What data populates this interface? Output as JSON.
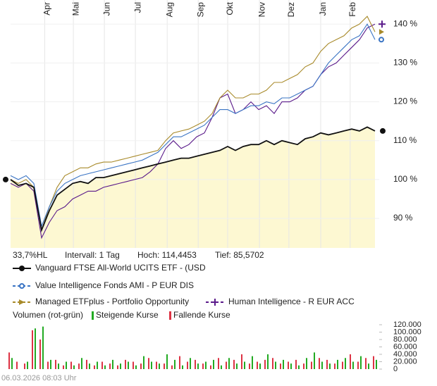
{
  "chart_data": [
    {
      "type": "line",
      "xlim": [
        0,
        47
      ],
      "xticks": [
        {
          "value": 4.4,
          "label": "Apr"
        },
        {
          "value": 8.1,
          "label": "Mai"
        },
        {
          "value": 12.1,
          "label": "Jun"
        },
        {
          "value": 16.1,
          "label": "Jul"
        },
        {
          "value": 20.2,
          "label": "Aug"
        },
        {
          "value": 24.2,
          "label": "Sep"
        },
        {
          "value": 28,
          "label": "Okt"
        },
        {
          "value": 32.1,
          "label": "Nov"
        },
        {
          "value": 35.9,
          "label": "Dez"
        },
        {
          "value": 40,
          "label": "Jan"
        },
        {
          "value": 43.8,
          "label": "Feb"
        }
      ],
      "ylim": [
        82.4,
        146.2
      ],
      "yticks": [
        {
          "value": 90,
          "label": "90 %"
        },
        {
          "value": 100,
          "label": "100 %"
        },
        {
          "value": 110,
          "label": "110 %"
        },
        {
          "value": 120,
          "label": "120 %"
        },
        {
          "value": 130,
          "label": "130 %"
        },
        {
          "value": 140,
          "label": "140 %"
        }
      ],
      "grid": true,
      "annotations": [
        "33,7%HL",
        "Intervall: 1 Tag",
        "Hoch: 114,4453",
        "Tief: 85,5702"
      ],
      "series": [
        {
          "name": "Vanguard FTSE All-World UCITS ETF - (USD",
          "color": "#111111",
          "fill": "#fdf8d2",
          "marker": "dot",
          "values": [
            100,
            98.5,
            99,
            98,
            87,
            92,
            96,
            97.5,
            99,
            99.5,
            99,
            100.5,
            100.5,
            101,
            101.5,
            102,
            102.5,
            103,
            103.5,
            104,
            104.5,
            105,
            105.5,
            105.5,
            106,
            106.5,
            107,
            107.5,
            108.5,
            107.5,
            108.5,
            109,
            109,
            110,
            109,
            110,
            109.5,
            109,
            110.5,
            111,
            112,
            111.5,
            112,
            112.5,
            113,
            112.5,
            113.5,
            112.5
          ]
        },
        {
          "name": "Value Intelligence Fonds AMI - P EUR DIS",
          "color": "#3a74c4",
          "marker": "circle",
          "values": [
            101,
            100,
            101,
            99,
            88,
            93,
            97,
            99,
            100,
            101,
            101.5,
            102,
            102.5,
            103,
            103.5,
            104,
            104.5,
            105,
            106,
            107,
            109,
            111,
            111,
            112,
            113,
            114,
            116,
            118,
            118,
            117,
            118,
            119,
            119,
            120,
            119.5,
            121,
            121,
            122,
            123,
            124,
            127,
            130,
            132,
            134,
            136,
            137,
            140,
            136
          ]
        },
        {
          "name": "Managed ETFplus - Portfolio Opportunity",
          "color": "#a88a2a",
          "marker": "arrow",
          "values": [
            100,
            99,
            100,
            98,
            87,
            93,
            98,
            101,
            102,
            103,
            103,
            104,
            104.5,
            104.5,
            105,
            105.5,
            106,
            106.5,
            107,
            107.5,
            110,
            112,
            112.5,
            113,
            114,
            115,
            117,
            121,
            123,
            121,
            121,
            122,
            122,
            123,
            125,
            125,
            126,
            127,
            129,
            130,
            133,
            135,
            136,
            137,
            139,
            140,
            142,
            138
          ]
        },
        {
          "name": "Human Intelligence - R EUR ACC",
          "color": "#5a1a8a",
          "marker": "plus",
          "values": [
            99,
            98,
            99,
            97,
            85,
            89,
            92,
            93,
            95,
            96,
            97,
            97,
            98,
            98.5,
            99,
            99.5,
            100,
            100.5,
            102,
            104,
            108,
            110,
            108,
            109,
            111,
            112,
            116,
            121,
            122,
            117,
            118,
            120,
            118,
            119,
            117,
            120,
            120,
            121,
            123,
            124,
            127,
            129,
            130,
            132,
            134,
            136,
            139,
            140
          ]
        }
      ]
    },
    {
      "type": "bar",
      "title": "Volumen (rot-grün)",
      "ylim": [
        0,
        120000
      ],
      "yticks": [
        {
          "value": 0,
          "label": "0"
        },
        {
          "value": 20000,
          "label": "20.000"
        },
        {
          "value": 40000,
          "label": "40.000"
        },
        {
          "value": 60000,
          "label": "60.000"
        },
        {
          "value": 80000,
          "label": "80.000"
        },
        {
          "value": 100000,
          "label": "100.000"
        },
        {
          "value": 120000,
          "label": "120.000"
        }
      ],
      "series": [
        {
          "name": "Steigende Kurse",
          "color": "#22aa22",
          "values": [
            30000,
            0,
            20000,
            110000,
            115000,
            25000,
            15000,
            20000,
            10000,
            30000,
            15000,
            20000,
            10000,
            25000,
            15000,
            20000,
            10000,
            35000,
            20000,
            15000,
            40000,
            25000,
            10000,
            30000,
            15000,
            20000,
            25000,
            10000,
            30000,
            15000,
            20000,
            35000,
            15000,
            40000,
            20000,
            25000,
            15000,
            10000,
            30000,
            45000,
            20000,
            15000,
            25000,
            30000,
            20000,
            35000,
            15000,
            25000
          ]
        },
        {
          "name": "Fallende Kurse",
          "color": "#dd3344",
          "values": [
            45000,
            20000,
            15000,
            105000,
            80000,
            20000,
            25000,
            10000,
            20000,
            15000,
            25000,
            10000,
            20000,
            15000,
            10000,
            25000,
            20000,
            15000,
            30000,
            20000,
            15000,
            10000,
            35000,
            20000,
            25000,
            15000,
            10000,
            30000,
            20000,
            25000,
            40000,
            15000,
            20000,
            25000,
            30000,
            15000,
            20000,
            25000,
            15000,
            20000,
            30000,
            25000,
            15000,
            20000,
            40000,
            20000,
            30000,
            35000
          ]
        }
      ]
    }
  ],
  "footer": "06.03.2026 08:03 Uhr"
}
